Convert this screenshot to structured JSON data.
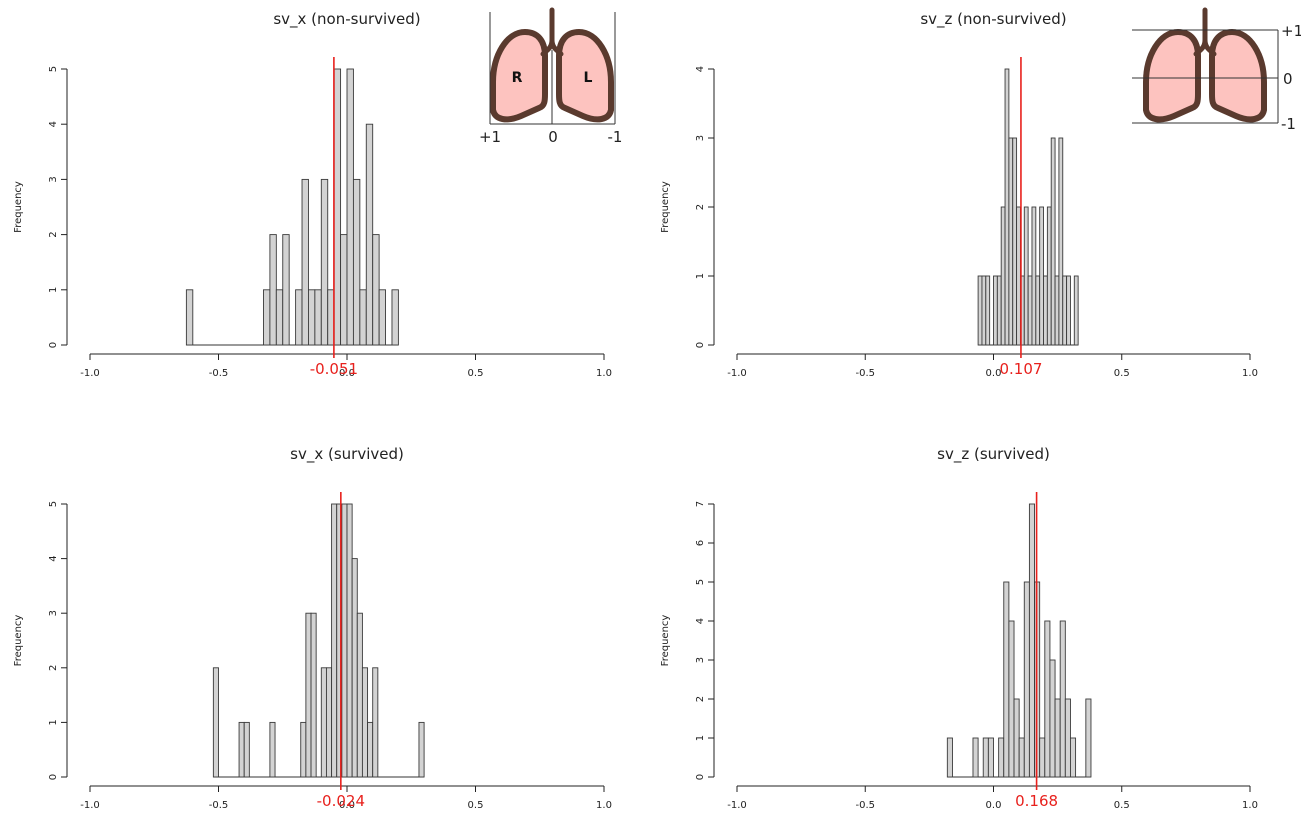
{
  "chart_data": [
    {
      "type": "bar",
      "title": "sv_x (non-survived)",
      "ylabel": "Frequency",
      "xlim": [
        -1.0,
        1.0
      ],
      "ylim": [
        0,
        5
      ],
      "x_ticks": [
        "-1.0",
        "-0.5",
        "0.0",
        "0.5",
        "1.0"
      ],
      "y_ticks": [
        "0",
        "1",
        "2",
        "3",
        "4",
        "5"
      ],
      "bin_width": 0.025,
      "bins": [
        {
          "x0": -0.625,
          "count": 1
        },
        {
          "x0": -0.325,
          "count": 1
        },
        {
          "x0": -0.3,
          "count": 2
        },
        {
          "x0": -0.275,
          "count": 1
        },
        {
          "x0": -0.25,
          "count": 2
        },
        {
          "x0": -0.2,
          "count": 1
        },
        {
          "x0": -0.175,
          "count": 3
        },
        {
          "x0": -0.15,
          "count": 1
        },
        {
          "x0": -0.125,
          "count": 1
        },
        {
          "x0": -0.1,
          "count": 3
        },
        {
          "x0": -0.075,
          "count": 1
        },
        {
          "x0": -0.05,
          "count": 5
        },
        {
          "x0": -0.025,
          "count": 2
        },
        {
          "x0": 0.0,
          "count": 5
        },
        {
          "x0": 0.025,
          "count": 3
        },
        {
          "x0": 0.05,
          "count": 1
        },
        {
          "x0": 0.075,
          "count": 4
        },
        {
          "x0": 0.1,
          "count": 2
        },
        {
          "x0": 0.125,
          "count": 1
        },
        {
          "x0": 0.175,
          "count": 1
        }
      ],
      "mean": -0.051,
      "mean_label": "-0.051",
      "mean_color": "#e8211d",
      "inset": {
        "type": "lungs_x",
        "labels": {
          "R": "R",
          "L": "L",
          "left": "+1",
          "mid": "0",
          "right": "-1"
        }
      }
    },
    {
      "type": "bar",
      "title": "sv_z (non-survived)",
      "ylabel": "Frequency",
      "xlim": [
        -1.0,
        1.0
      ],
      "ylim": [
        0,
        4
      ],
      "x_ticks": [
        "-1.0",
        "-0.5",
        "0.0",
        "0.5",
        "1.0"
      ],
      "y_ticks": [
        "0",
        "1",
        "2",
        "3",
        "4"
      ],
      "bin_width": 0.015,
      "bins": [
        {
          "x0": -0.06,
          "count": 1
        },
        {
          "x0": -0.045,
          "count": 1
        },
        {
          "x0": -0.03,
          "count": 1
        },
        {
          "x0": 0.0,
          "count": 1
        },
        {
          "x0": 0.015,
          "count": 1
        },
        {
          "x0": 0.03,
          "count": 2
        },
        {
          "x0": 0.045,
          "count": 4
        },
        {
          "x0": 0.06,
          "count": 3
        },
        {
          "x0": 0.075,
          "count": 3
        },
        {
          "x0": 0.09,
          "count": 2
        },
        {
          "x0": 0.105,
          "count": 1
        },
        {
          "x0": 0.12,
          "count": 2
        },
        {
          "x0": 0.135,
          "count": 1
        },
        {
          "x0": 0.15,
          "count": 2
        },
        {
          "x0": 0.165,
          "count": 1
        },
        {
          "x0": 0.18,
          "count": 2
        },
        {
          "x0": 0.195,
          "count": 1
        },
        {
          "x0": 0.21,
          "count": 2
        },
        {
          "x0": 0.225,
          "count": 3
        },
        {
          "x0": 0.24,
          "count": 1
        },
        {
          "x0": 0.255,
          "count": 3
        },
        {
          "x0": 0.27,
          "count": 1
        },
        {
          "x0": 0.285,
          "count": 1
        },
        {
          "x0": 0.315,
          "count": 1
        }
      ],
      "mean": 0.107,
      "mean_label": "0.107",
      "mean_color": "#e8211d",
      "inset": {
        "type": "lungs_z",
        "labels": {
          "top": "+1",
          "mid": "0",
          "bottom": "-1"
        }
      }
    },
    {
      "type": "bar",
      "title": "sv_x (survived)",
      "ylabel": "Frequency",
      "xlim": [
        -1.0,
        1.0
      ],
      "ylim": [
        0,
        5
      ],
      "x_ticks": [
        "-1.0",
        "-0.5",
        "0.0",
        "0.5",
        "1.0"
      ],
      "y_ticks": [
        "0",
        "1",
        "2",
        "3",
        "4",
        "5"
      ],
      "bin_width": 0.02,
      "bins": [
        {
          "x0": -0.52,
          "count": 2
        },
        {
          "x0": -0.42,
          "count": 1
        },
        {
          "x0": -0.4,
          "count": 1
        },
        {
          "x0": -0.3,
          "count": 1
        },
        {
          "x0": -0.18,
          "count": 1
        },
        {
          "x0": -0.16,
          "count": 3
        },
        {
          "x0": -0.14,
          "count": 3
        },
        {
          "x0": -0.1,
          "count": 2
        },
        {
          "x0": -0.08,
          "count": 2
        },
        {
          "x0": -0.06,
          "count": 5
        },
        {
          "x0": -0.04,
          "count": 5
        },
        {
          "x0": -0.02,
          "count": 5
        },
        {
          "x0": 0.0,
          "count": 5
        },
        {
          "x0": 0.02,
          "count": 4
        },
        {
          "x0": 0.04,
          "count": 3
        },
        {
          "x0": 0.06,
          "count": 2
        },
        {
          "x0": 0.08,
          "count": 1
        },
        {
          "x0": 0.1,
          "count": 2
        },
        {
          "x0": 0.28,
          "count": 1
        }
      ],
      "mean": -0.024,
      "mean_label": "-0.024",
      "mean_color": "#e8211d"
    },
    {
      "type": "bar",
      "title": "sv_z (survived)",
      "ylabel": "Frequency",
      "xlim": [
        -1.0,
        1.0
      ],
      "ylim": [
        0,
        7
      ],
      "x_ticks": [
        "-1.0",
        "-0.5",
        "0.0",
        "0.5",
        "1.0"
      ],
      "y_ticks": [
        "0",
        "1",
        "2",
        "3",
        "4",
        "5",
        "6",
        "7"
      ],
      "bin_width": 0.02,
      "bins": [
        {
          "x0": -0.18,
          "count": 1
        },
        {
          "x0": -0.08,
          "count": 1
        },
        {
          "x0": -0.04,
          "count": 1
        },
        {
          "x0": -0.02,
          "count": 1
        },
        {
          "x0": 0.02,
          "count": 1
        },
        {
          "x0": 0.04,
          "count": 5
        },
        {
          "x0": 0.06,
          "count": 4
        },
        {
          "x0": 0.08,
          "count": 2
        },
        {
          "x0": 0.1,
          "count": 1
        },
        {
          "x0": 0.12,
          "count": 5
        },
        {
          "x0": 0.14,
          "count": 7
        },
        {
          "x0": 0.16,
          "count": 5
        },
        {
          "x0": 0.18,
          "count": 1
        },
        {
          "x0": 0.2,
          "count": 4
        },
        {
          "x0": 0.22,
          "count": 3
        },
        {
          "x0": 0.24,
          "count": 2
        },
        {
          "x0": 0.26,
          "count": 4
        },
        {
          "x0": 0.28,
          "count": 2
        },
        {
          "x0": 0.3,
          "count": 1
        },
        {
          "x0": 0.36,
          "count": 2
        }
      ],
      "mean": 0.168,
      "mean_label": "0.168",
      "mean_color": "#e8211d"
    }
  ]
}
